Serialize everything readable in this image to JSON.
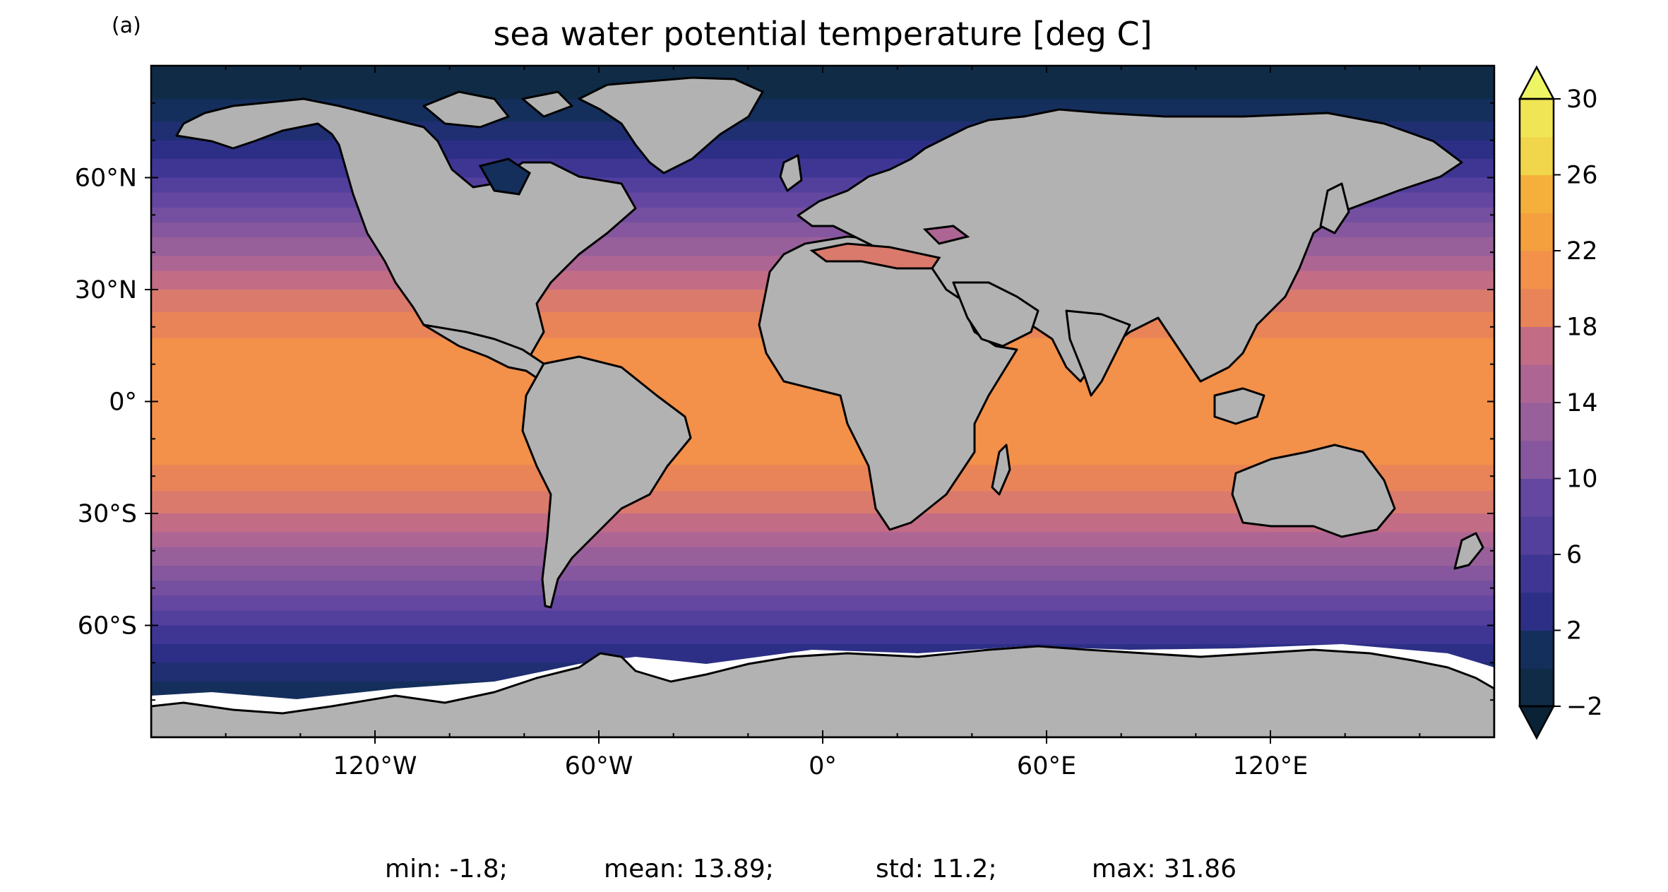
{
  "figure": {
    "panel_label": "(a)",
    "title": "sea water potential temperature [deg C]",
    "stats": {
      "min": "min: -1.8;",
      "mean": "mean: 13.89;",
      "std": "std: 11.2;",
      "max": "max: 31.86"
    }
  },
  "map": {
    "projection": "PlateCarree",
    "lon_range": [
      -180,
      180
    ],
    "lat_range": [
      -90,
      90
    ],
    "land_color": "#b2b2b2",
    "coastline_color": "#000000",
    "lat_ticks": [
      {
        "value": 60,
        "label": "60°N"
      },
      {
        "value": 30,
        "label": "30°N"
      },
      {
        "value": 0,
        "label": "0°"
      },
      {
        "value": -30,
        "label": "30°S"
      },
      {
        "value": -60,
        "label": "60°S"
      }
    ],
    "lon_ticks": [
      {
        "value": -120,
        "label": "120°W"
      },
      {
        "value": -60,
        "label": "60°W"
      },
      {
        "value": 0,
        "label": "0°"
      },
      {
        "value": 60,
        "label": "60°E"
      },
      {
        "value": 120,
        "label": "120°E"
      }
    ],
    "sea_ice_color": "#ffffff"
  },
  "colorbar": {
    "vmin": -2,
    "vmax": 30,
    "step": 2,
    "extend": "both",
    "ticks": [
      {
        "value": 30,
        "label": "30"
      },
      {
        "value": 26,
        "label": "26"
      },
      {
        "value": 22,
        "label": "22"
      },
      {
        "value": 18,
        "label": "18"
      },
      {
        "value": 14,
        "label": "14"
      },
      {
        "value": 10,
        "label": "10"
      },
      {
        "value": 6,
        "label": "6"
      },
      {
        "value": 2,
        "label": "2"
      },
      {
        "value": -2,
        "label": "−2"
      }
    ],
    "colors": [
      "#0f2b46",
      "#142f5c",
      "#1f2f72",
      "#2d2f86",
      "#3f3694",
      "#533f9c",
      "#6447a0",
      "#754fa0",
      "#86579e",
      "#98609a",
      "#ad6694",
      "#c26c86",
      "#d97a6c",
      "#e88457",
      "#f3904a",
      "#f5a03f",
      "#f5b03c",
      "#f2c33f",
      "#f1d54a",
      "#f0e655"
    ],
    "under_color": "#0a2236",
    "over_color": "#eef565"
  }
}
